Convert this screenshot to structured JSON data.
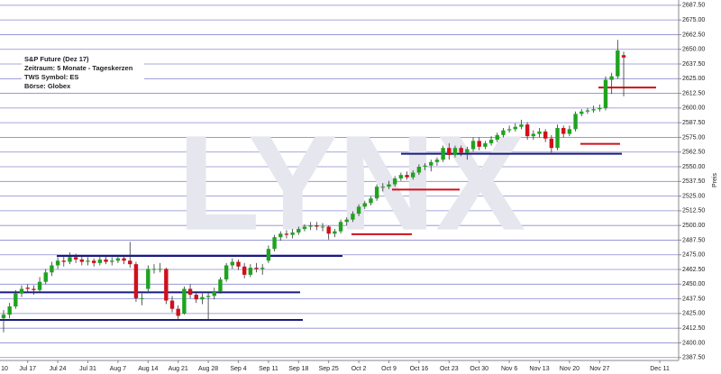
{
  "chart_data": {
    "type": "candlestick",
    "title": "S&P Future (Dez 17)",
    "info": [
      "Zeitraum: 5 Monate - Tageskerzen",
      "TWS Symbol: ES",
      "Börse: Globex"
    ],
    "watermark": "LYNX",
    "y_label": "Preis",
    "up_color": "#1fa31f",
    "down_color": "#d0101a",
    "grid": true,
    "grid_color": "#8a8ad0",
    "categories": [
      "10",
      null,
      null,
      null,
      null,
      "Jul 17",
      null,
      null,
      null,
      null,
      "Jul 24",
      null,
      null,
      null,
      null,
      "Jul 31",
      null,
      null,
      null,
      null,
      "Aug 7",
      null,
      null,
      null,
      null,
      "Aug 14",
      null,
      null,
      null,
      null,
      "Aug 21",
      null,
      null,
      null,
      null,
      "Aug 28",
      null,
      null,
      null,
      null,
      "Sep 4",
      null,
      null,
      null,
      null,
      "Sep 11",
      null,
      null,
      null,
      null,
      "Sep 18",
      null,
      null,
      null,
      null,
      "Sep 25",
      null,
      null,
      null,
      null,
      "Oct 2",
      null,
      null,
      null,
      null,
      "Oct 9",
      null,
      null,
      null,
      null,
      "Oct 16",
      null,
      null,
      null,
      null,
      "Oct 23",
      null,
      null,
      null,
      null,
      "Oct 30",
      null,
      null,
      null,
      null,
      "Nov 6",
      null,
      null,
      null,
      null,
      "Nov 13",
      null,
      null,
      null,
      null,
      "Nov 20",
      null,
      null,
      null,
      null,
      "Nov 27",
      null,
      null,
      null,
      null,
      null,
      null,
      null,
      null,
      null,
      "Dec 11"
    ],
    "open": [
      null,
      2421,
      2424,
      2431,
      2442,
      2447,
      2446,
      2445,
      2452,
      2460,
      2466,
      2470,
      2469,
      2473,
      2471,
      2469,
      2470,
      2468,
      2471,
      2469,
      2470,
      2472,
      2470,
      2467,
      2438,
      2446,
      2463,
      2463,
      2463,
      2436,
      2429,
      2425,
      2446,
      2441,
      2437,
      2439,
      2440,
      2444,
      2454,
      2466,
      2469,
      2465,
      2458,
      2464,
      2463,
      2470,
      2480,
      2490,
      2493,
      2492,
      2494,
      2497,
      2499,
      2500,
      2499,
      2499,
      2493,
      2495,
      2503,
      2505,
      2510,
      2516,
      2519,
      2523,
      2533,
      2533,
      2535,
      2540,
      2543,
      2541,
      2545,
      2550,
      2551,
      2554,
      2556,
      2566,
      2560,
      2566,
      2562,
      2565,
      2572,
      2567,
      2570,
      2573,
      2577,
      2581,
      2582,
      2584,
      2586,
      2576,
      2578,
      2580,
      2574,
      2566,
      2583,
      2578,
      2582,
      2595,
      2597,
      2598,
      2599,
      2600,
      2624,
      2627,
      2645,
      null,
      null,
      null,
      null,
      null,
      null
    ],
    "high": [
      null,
      2428,
      2434,
      2445,
      2449,
      2450,
      2449,
      2456,
      2463,
      2469,
      2473,
      2474,
      2477,
      2476,
      2474,
      2473,
      2472,
      2474,
      2474,
      2473,
      2475,
      2474,
      2486,
      2469,
      2442,
      2466,
      2467,
      2468,
      2464,
      2440,
      2432,
      2448,
      2450,
      2444,
      2442,
      2443,
      2447,
      2456,
      2468,
      2472,
      2471,
      2468,
      2467,
      2468,
      2467,
      2483,
      2492,
      2495,
      2496,
      2497,
      2499,
      2501,
      2503,
      2503,
      2502,
      2500,
      2497,
      2505,
      2507,
      2512,
      2518,
      2521,
      2525,
      2535,
      2536,
      2538,
      2542,
      2545,
      2546,
      2547,
      2552,
      2553,
      2556,
      2558,
      2568,
      2570,
      2568,
      2568,
      2567,
      2575,
      2575,
      2572,
      2576,
      2579,
      2583,
      2585,
      2587,
      2590,
      2588,
      2581,
      2583,
      2582,
      2577,
      2586,
      2585,
      2585,
      2597,
      2599,
      2600,
      2602,
      2603,
      2627,
      2630,
      2658,
      2648,
      null,
      null,
      null,
      null,
      null,
      null
    ],
    "low": [
      null,
      2409,
      2421,
      2429,
      2439,
      2443,
      2441,
      2443,
      2450,
      2457,
      2463,
      2465,
      2467,
      2468,
      2466,
      2466,
      2465,
      2466,
      2467,
      2466,
      2468,
      2467,
      2464,
      2435,
      2432,
      2444,
      2459,
      2460,
      2433,
      2426,
      2419,
      2424,
      2438,
      2434,
      2433,
      2420,
      2437,
      2442,
      2452,
      2463,
      2462,
      2455,
      2456,
      2460,
      2458,
      2468,
      2478,
      2487,
      2489,
      2489,
      2492,
      2495,
      2496,
      2496,
      2495,
      2488,
      2490,
      2493,
      2500,
      2503,
      2508,
      2514,
      2517,
      2521,
      2529,
      2531,
      2533,
      2538,
      2539,
      2539,
      2543,
      2547,
      2546,
      2551,
      2554,
      2556,
      2558,
      2559,
      2556,
      2563,
      2564,
      2565,
      2568,
      2571,
      2575,
      2579,
      2580,
      2582,
      2573,
      2573,
      2575,
      2571,
      2562,
      2564,
      2575,
      2576,
      2580,
      2593,
      2595,
      2596,
      2597,
      2598,
      2612,
      2625,
      2610,
      null,
      null,
      null,
      null,
      null,
      null
    ],
    "close": [
      null,
      2424,
      2431,
      2442,
      2446,
      2446,
      2445,
      2452,
      2460,
      2466,
      2470,
      2469,
      2473,
      2471,
      2469,
      2470,
      2468,
      2471,
      2469,
      2470,
      2472,
      2470,
      2467,
      2438,
      2438,
      2463,
      2463,
      2463,
      2436,
      2429,
      2423,
      2446,
      2441,
      2437,
      2439,
      2440,
      2444,
      2454,
      2466,
      2469,
      2465,
      2458,
      2464,
      2463,
      2464,
      2480,
      2490,
      2493,
      2492,
      2494,
      2497,
      2499,
      2500,
      2499,
      2499,
      2493,
      2495,
      2503,
      2505,
      2510,
      2516,
      2519,
      2523,
      2533,
      2533,
      2535,
      2540,
      2543,
      2541,
      2545,
      2550,
      2551,
      2554,
      2556,
      2566,
      2560,
      2566,
      2562,
      2565,
      2572,
      2567,
      2570,
      2573,
      2577,
      2581,
      2582,
      2584,
      2586,
      2576,
      2578,
      2580,
      2574,
      2566,
      2583,
      2578,
      2582,
      2595,
      2597,
      2598,
      2599,
      2600,
      2624,
      2627,
      2649,
      2643,
      null,
      null,
      null,
      null,
      null,
      null
    ],
    "levels": [
      {
        "value": 2474,
        "color": "#1a1a80"
      },
      {
        "value": 2443,
        "color": "#1a1a80"
      },
      {
        "value": 2419.5,
        "color": "#1a1a80"
      },
      {
        "value": 2561,
        "color": "#1a1a80"
      },
      {
        "value": 2492.5,
        "color": "#d0101a"
      },
      {
        "value": 2530.5,
        "color": "#d0101a"
      },
      {
        "value": 2569.5,
        "color": "#d0101a"
      },
      {
        "value": 2617.5,
        "color": "#d0101a"
      }
    ],
    "ylim": [
      2385,
      2692
    ],
    "yticks": [
      {
        "value": 2387.5,
        "label": "2387.50"
      },
      {
        "value": 2400,
        "label": "2400.00"
      },
      {
        "value": 2412.5,
        "label": "2412.50"
      },
      {
        "value": 2425,
        "label": "2425.00"
      },
      {
        "value": 2437.5,
        "label": "2437.50"
      },
      {
        "value": 2450,
        "label": "2450.00"
      },
      {
        "value": 2462.5,
        "label": "2462.50"
      },
      {
        "value": 2475,
        "label": "2475.00"
      },
      {
        "value": 2487.5,
        "label": "2487.50"
      },
      {
        "value": 2500,
        "label": "2500.00"
      },
      {
        "value": 2512.5,
        "label": "2512.50"
      },
      {
        "value": 2525,
        "label": "2525.00"
      },
      {
        "value": 2537.5,
        "label": "2537.50"
      },
      {
        "value": 2550,
        "label": "2550.00"
      },
      {
        "value": 2562.5,
        "label": "2562.50"
      },
      {
        "value": 2575,
        "label": "2575.00"
      },
      {
        "value": 2587.5,
        "label": "2587.50"
      },
      {
        "value": 2600,
        "label": "2600.00"
      },
      {
        "value": 2612.5,
        "label": "2612.50"
      },
      {
        "value": 2625,
        "label": "2625.00"
      },
      {
        "value": 2637.5,
        "label": "2637.50"
      },
      {
        "value": 2650,
        "label": "2650.00"
      },
      {
        "value": 2662.5,
        "label": "2662.50"
      },
      {
        "value": 2675,
        "label": "2675.00"
      },
      {
        "value": 2687.5,
        "label": "2687.50"
      }
    ]
  }
}
